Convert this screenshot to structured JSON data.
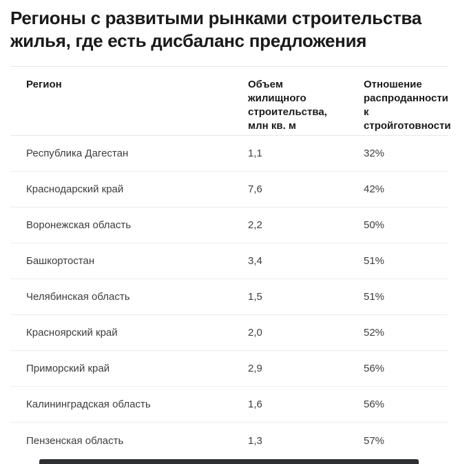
{
  "chart_data": {
    "type": "table",
    "title": "Регионы с развитыми рынками строительства жилья, где есть дисбаланс предложения",
    "columns": [
      "Регион",
      "Объем жилищного строительства, млн кв. м",
      "Отношение распроданности к стройготовности"
    ],
    "rows": [
      [
        "Республика Дагестан",
        "1,1",
        "32%"
      ],
      [
        "Краснодарский край",
        "7,6",
        "42%"
      ],
      [
        "Воронежская область",
        "2,2",
        "50%"
      ],
      [
        "Башкортостан",
        "3,4",
        "51%"
      ],
      [
        "Челябинская область",
        "1,5",
        "51%"
      ],
      [
        "Красноярский край",
        "2,0",
        "52%"
      ],
      [
        "Приморский край",
        "2,9",
        "56%"
      ],
      [
        "Калининградская область",
        "1,6",
        "56%"
      ],
      [
        "Пензенская область",
        "1,3",
        "57%"
      ]
    ],
    "legend_position": "none",
    "grid": "horizontal-dividers-only"
  },
  "colors": {
    "background": "#ffffff",
    "title_text": "#1a1a1a",
    "header_text": "#1a1a1a",
    "row_text": "#3d3d3d",
    "divider": "#ededed",
    "cutoff_bar": "#2e2f33"
  }
}
